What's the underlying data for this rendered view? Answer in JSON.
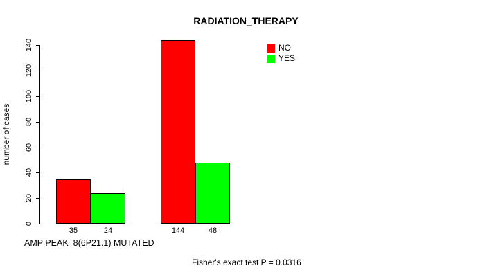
{
  "chart_data": {
    "type": "bar",
    "title": "RADIATION_THERAPY",
    "ylabel": "number of cases",
    "xlabel": "AMP PEAK  8(6P21.1) MUTATED",
    "series": [
      {
        "name": "NO",
        "color": "#ff0000",
        "values": [
          35,
          144
        ]
      },
      {
        "name": "YES",
        "color": "#00ff00",
        "values": [
          24,
          48
        ]
      }
    ],
    "value_labels": [
      "35",
      "24",
      "144",
      "48"
    ],
    "yticks": [
      0,
      20,
      40,
      60,
      80,
      100,
      120,
      140
    ],
    "ylim": [
      0,
      144
    ],
    "grid": false,
    "legend_position": "top-right",
    "axis_color": "#000000",
    "annotation": "Fisher's exact test P = 0.0316"
  }
}
